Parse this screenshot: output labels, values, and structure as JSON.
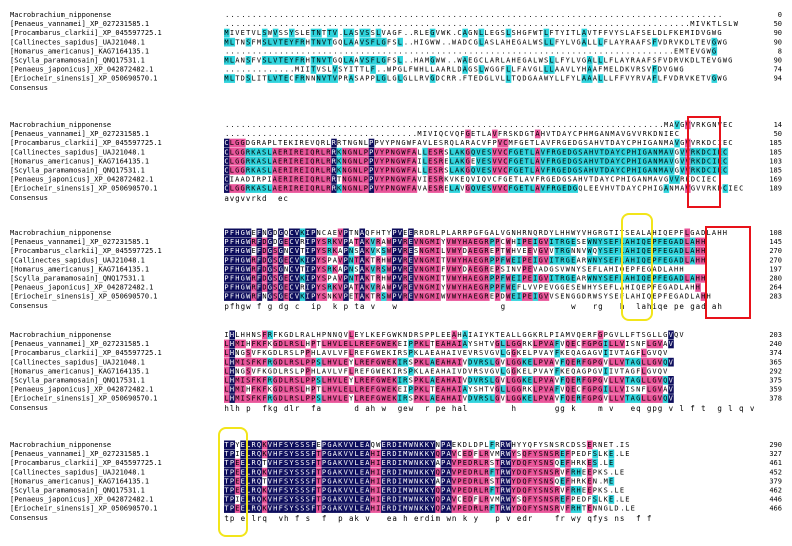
{
  "colors": {
    "identical": "#0d0d5c",
    "high": "#e9559a",
    "similar": "#2fd3dc",
    "red_box": "#e8121a",
    "yellow_box": "#f2e51a"
  },
  "blocks": [
    {
      "rows": [
        {
          "label": "Macrobrachium_nipponense",
          "seq": "............................................................................................",
          "end": "0"
        },
        {
          "label": "[Penaeus_vannamei]_XP_027231585.1",
          "seq": "......................................................................................MIVKTLSLW",
          "end": "50"
        },
        {
          "label": "[Procambarus_clarkii]_XP_045597725.1",
          "seq": "MIVETVLSWVSSYSLETNTTV.LASVSSLVAGF..RLEGVWK.CAGNLLEGSLSHGFWTLFTYITLAVTFFVYSLAFSELDLFKEMIDVGWG",
          "end": "90"
        },
        {
          "label": "[Callinectes_sapidus]_UAJ21048.1",
          "seq": "MLTNSFMSLVTEYFRHTNVTGQLAAVSFLGFSL..HIGWW..WADCGLASLAHEGALWSLLFYLVGALLLFLAYRAAFSFVDRVKDLTEVGWG",
          "end": "90"
        },
        {
          "label": "[Homarus_americanus]_KAG7164135.1",
          "seq": "...................................................................................EMTEVGWG",
          "end": "8"
        },
        {
          "label": "[Scylla_paramamosain]_QNQ17531.1",
          "seq": "MLANSFVSLVTEYFRHTNVTGQLAAVSFLGFSL..HAMGWW..WAEGCLARLAHEGALWSLLFYLVGALLLFLAYRAAFSFVDRVKDLTEVGWG",
          "end": "90"
        },
        {
          "label": "[Penaeus_japonicus]_XP_042872482.1",
          "seq": ".............MIITVSLVSYITTLF..WPGLFWHLLAARLDAGSLWGGFLLFAVGLLLAAVLYHAAFMELDKVRSVFDVGWG",
          "end": "74"
        },
        {
          "label": "[Eriocheir_sinensis]_XP_050690570.1",
          "seq": "MLTDSLITLVTECFRNNNVTVPRASAPPLGLGLGLLRVGDCRR.FTEDGLVLLTQDGAAWYLLFYLAAALLLFFVYRVAFLFVDRVKETVGWG",
          "end": "94"
        }
      ],
      "consensus": ""
    },
    {
      "rows": [
        {
          "label": "Macrobrachium_nipponense",
          "seq": "..................................................................................MAVGVVRKGNVEC",
          "end": "14"
        },
        {
          "label": "[Penaeus_vannamei]_XP_027231585.1",
          "seq": "....................................MIVIQCVQFGETLAVFRSKDGTAHVTDAYCPHMGANMAVGVVRKDNIEC",
          "end": "50"
        },
        {
          "label": "[Procambarus_clarkii]_XP_045597725.1",
          "seq": "CLGGDGRAPLTEKIREVQRLRRTNGNLPPVYPNGWFAVLESRQLARACVFPVCMFGETLAVFRGEDGSAHVTDAYCPHIGANMAVGVVRKDCIEC",
          "end": "185"
        },
        {
          "label": "[Callinectes_sapidus]_UAJ21048.1",
          "seq": "CLGGRKASLAERIREIQRLRRKNGNLPPVYPNGWFALLESRSLAKGQVESVVCFGETLAVFRGEDGSAHVTDAYCPHIGANMAVGVVRKDCIEC",
          "end": "185"
        },
        {
          "label": "[Homarus_americanus]_KAG7164135.1",
          "seq": "CLGGRKASLAERIREIQRLRRKNGNLPPVYPNGWFAILESRELAKGEVESVVCFGETLAVFRGEDGSAHVTDAYCPHIGANMAVGVVRKDCIEC",
          "end": "103"
        },
        {
          "label": "[Scylla_paramamosain]_QNQ17531.1",
          "seq": "CLGGRKASLAERIREIQRLRRKNGNLPPVYPNGWFALLESRSLAKGQVESVVCFGETLAVFRGEDGSAHVTDAYCPHIGANMAVGVVRKDCIEC",
          "end": "185"
        },
        {
          "label": "[Penaeus_japonicus]_XP_042872482.1",
          "seq": "CIAADIRPIAERIREIQRLRRTNGNLPPVYPNGWFAVIESRKVKEQVIQVCFGETLAVFRGEDGSAHVTDAYCPHIGANMAVGVVRKDCIEC",
          "end": "169"
        },
        {
          "label": "[Eriocheir_sinensis]_XP_050690570.1",
          "seq": "CLGGRKASLAERIREIQRLRRKNGNLPPVYPNGWFAVAESRELAVGQVESVVCFGETLAVFRGEDGQLEEVHVTDAYCPHIGANMAVGVVRKDCIEC",
          "end": "189"
        }
      ],
      "consensus": "avgvvrkd  ec"
    },
    {
      "rows": [
        {
          "label": "Macrobrachium_nipponense",
          "seq": "PFHGWEFNGDGQCVKIPNCAEVPTNAQFHTYPVEERRDRLPLARRPGFGALVGNHRNQRDYLHHWYVHGRGTITSEALAHIQEPFLGADLAHH",
          "end": "108"
        },
        {
          "label": "[Penaeus_vannamei]_XP_027231585.1",
          "seq": "PFHGWRFDGDGECVRIPYSRKVPATAKVRAWPVREVNGMIYVWYHAEGRPPCWHIPEIGVITRGESEWNYSEFLAHIQEPFEGADLAHH",
          "end": "145"
        },
        {
          "label": "[Procambarus_clarkii]_XP_045597725.1",
          "seq": "PFHGWEFDGSGNCVTIPYSRKAPNSAKVKSWPVRESNGMILVWYDAEGREPTWHVEEVGVVTRGNNVWQYSEFLAHIQEPFEGADLAHH",
          "end": "270"
        },
        {
          "label": "[Callinectes_sapidus]_UAJ21048.1",
          "seq": "PFHGWRFDGSGECVKIPYSPAVPNTAKTRHWPVREVNGMITVWYHAEGRPPFWEIPEIGVITRGEARWNYSEFLAHIQEPFEGADLAHH",
          "end": "270"
        },
        {
          "label": "[Homarus_americanus]_KAG7164135.1",
          "seq": "PFHGWRFDGSGNCVTIPYSRKAPNSAKVRSWPVREVNGMIFVWYDAEGREPSINVPEVADGSVWNYSEFLAHIQEPFEGADLAHH",
          "end": "197"
        },
        {
          "label": "[Scylla_paramamosain]_QNQ17531.1",
          "seq": "PFHGWRFDGSGECVKIPYSPAVPNTAKTRHWPVREVNGMITVWYHAEGRPPFWEIPEIGVITRGEARWNYSEFLAHIQEPFEGADLAHH",
          "end": "280"
        },
        {
          "label": "[Penaeus_japonicus]_XP_042872482.1",
          "seq": "PFHGWRFDGSGECVRIPYSRKVPATAKVRAWPVREVNGMIYVWYHAEGRPPFWEFLVVPEVGGESEWHYSEFLAHIQEPFEGADLAHH",
          "end": "264"
        },
        {
          "label": "[Eriocheir_sinensis]_XP_050690570.1",
          "seq": "PFHGWRFNGSGECVKIPYSNKVPETAKTRSWPVREVNGMIWVWYHAEGREPDWEIPEIGVVSENGGDRWSYSEFLAHIQEPFEGADLAHH",
          "end": "283"
        }
      ],
      "consensus": "pfhgw f g dg c  ip  k p ta v   w                   g            w   rg   h  lahiqe pe gad ah"
    },
    {
      "rows": [
        {
          "label": "Macrobrachium_nipponense",
          "seq": "IHLHHNSFRFKGDLRALHPNNQVLEYLKEFGWKNDRSPPLEEAHAIAIYKTEALLGGKRLPIAMVQERFGPGVLLFTSGLLGVQV",
          "end": "203"
        },
        {
          "label": "[Penaeus_vannamei]_XP_027231585.1",
          "seq": "LHMIHFKFKGDLRSLHPTLHVLELLREFGWEKEIPPKLTEAHAIAYSHTVGLLGGRKLPVAFVQECFGPGILLVISNFLGVAV",
          "end": "240"
        },
        {
          "label": "[Procambarus_clarkii]_XP_045597725.1",
          "seq": "LHNGSVFKGDLRSLPPHLAVLVFLREFGWEKIRSPKLAEAHAIVEVRSVGVLGGKELPVAYFKEQAGAGVIIVTAGFLGVQV",
          "end": "374"
        },
        {
          "label": "[Callinectes_sapidus]_UAJ21048.1",
          "seq": "LHMISFKFRGDLRSLPPSLHVLEYLREFGWEKIRSPKLAEAHAIVDVRSLGVLGGKELPVAVFQERFGPGVLLVTAGLLGVQV",
          "end": "365"
        },
        {
          "label": "[Homarus_americanus]_KAG7164135.1",
          "seq": "LHNGSVFKGDLRSLPPHLAVLVFLREFGWEKIRSPKLAEAHAIVDVRSVGVLGGKELPVAYFKEQAGPGVIIVTAGFLGVQV",
          "end": "292"
        },
        {
          "label": "[Scylla_paramamosain]_QNQ17531.1",
          "seq": "LHMISFKFRGDLRSLPPSLHVLEYLREFGWEKIRSPKLAEAHAIVDVRSLGVLGGKELPVAVFQERFGPGVLLVTAGLLGVQV",
          "end": "375"
        },
        {
          "label": "[Penaeus_japonicus]_XP_042872482.1",
          "seq": "LHMIHFKFKGDLRSLHPTLHVLELLREFGWEKEIPPKLTEAHAIAYSHTVGLLGGRKLPVAFVQECFGPGILLVISNFLGVAV",
          "end": "359"
        },
        {
          "label": "[Eriocheir_sinensis]_XP_050690570.1",
          "seq": "LHMISFKFRGDLRSLPPSLHVLEYLREFGWEKIRSPKLAEAHAIVDVRSLGVLGGKELPVAVFQERFGPGVLLVTAGLLGVQV",
          "end": "378"
        }
      ],
      "consensus": "hlh p  fkg dlr  fa      d ah w  gew  r pe hal        h       gg k    m v   eq gpg v l f t  g l q v"
    },
    {
      "rows": [
        {
          "label": "Macrobrachium_nipponense",
          "seq": "TPYELRQKVHFSYSSSFEPGAKVVLEAQWERDIMWNKKYNPAEKDLDPLFRRWHYYQFYSNSRCDSSERNET.IS",
          "end": "290"
        },
        {
          "label": "[Penaeus_vannamei]_XP_027231585.1",
          "seq": "TPIELRQKVHFSYSSSFTPGAKVVLEAHIERDIMWNKKYQPAVCEDFLRVMRWYSQFYSNSREFPEDFSLKE.LE",
          "end": "327"
        },
        {
          "label": "[Procambarus_clarkii]_XP_045597725.1",
          "seq": "TPEELRQTVHFSYSSSFTPGAKVVLEAHIERDIMWNKKYAPAVPEDRLRSTRWYDQFYSNSQEFHRKES.LE",
          "end": "461"
        },
        {
          "label": "[Callinectes_sapidus]_UAJ21048.1",
          "seq": "TPEELRQKVHFSYSSSFTPGAKVVLEAHIERDIMWNKKYQPAVPEDRLRFTRWYDQFYSNSRVFRHEEPKS.LE",
          "end": "452"
        },
        {
          "label": "[Homarus_americanus]_KAG7164135.1",
          "seq": "TPEELRQTVHFSYSSSFTPGAKVVLEAHIERDIMWNKKYAPAVPEDRLRSTRWYDQFYSNSQEFHRKEN.ME",
          "end": "379"
        },
        {
          "label": "[Scylla_paramamosain]_QNQ17531.1",
          "seq": "TPEELRQKVHFSYSSSFTPGAKVVLEAHIERDIMWNKKYQPAVPEDRLRFTRWYDQFYSNSRVFRHEEPKS.LE",
          "end": "462"
        },
        {
          "label": "[Penaeus_japonicus]_XP_042872482.1",
          "seq": "TPIELRQKVHFSYSSSFTPGAKVVLEAHIERDIMWNKKYQPAVCEDFLRVMRWYSQFYSNSREFPEDFSLKE.LE",
          "end": "446"
        },
        {
          "label": "[Eriocheir_sinensis]_XP_050690570.1",
          "seq": "TPEELRQKVHFSYSSSFTPGAKVVLEAHIERDIMWNKKYQPAVPEDRLRFTRWYDQFYSNSRVFRHTENNGLD.LE",
          "end": "466"
        }
      ],
      "consensus": "tp e lrq  vh f s  f  p ak v   ea h erdim wn k y   p v edr    fr wy qfys ns  f f"
    },
    {
      "rows": [],
      "consensus": ""
    }
  ],
  "consensus_label": "Consensus"
}
